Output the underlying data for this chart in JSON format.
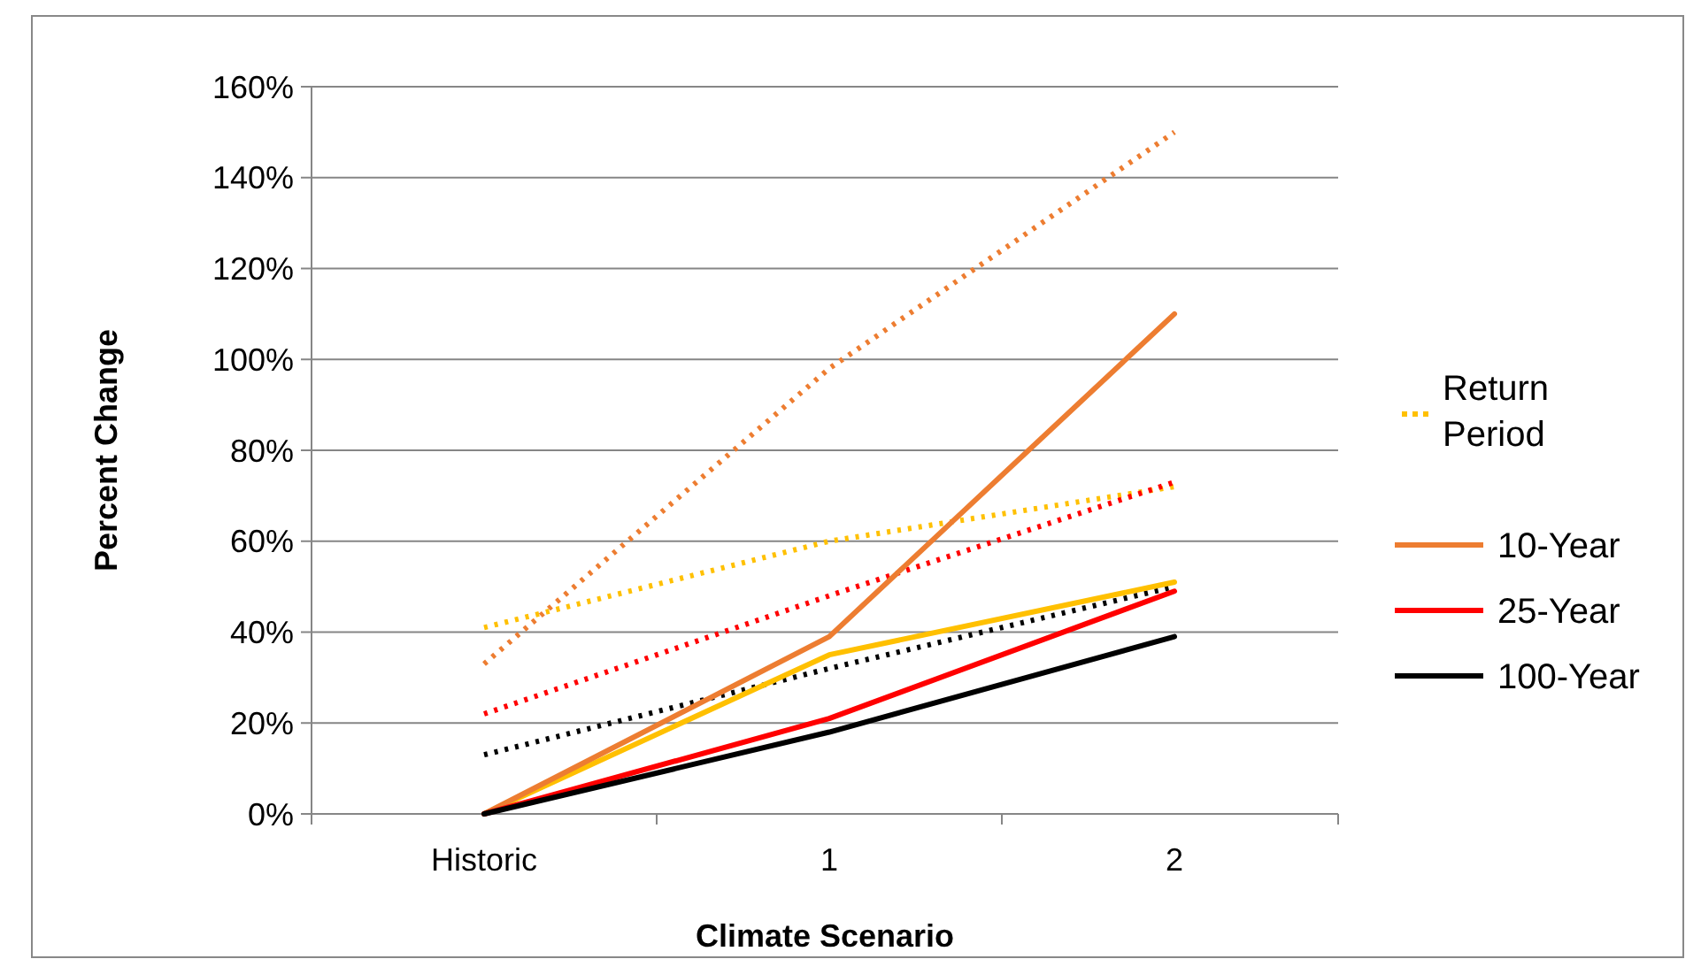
{
  "chart_data": {
    "type": "line",
    "xlabel": "Climate Scenario",
    "ylabel": "Percent Change",
    "categories": [
      "Historic",
      "1",
      "2"
    ],
    "ylim": [
      0,
      160
    ],
    "yticks": [
      {
        "value": 0,
        "label": "0%"
      },
      {
        "value": 20,
        "label": "20%"
      },
      {
        "value": 40,
        "label": "40%"
      },
      {
        "value": 60,
        "label": "60%"
      },
      {
        "value": 80,
        "label": "80%"
      },
      {
        "value": 100,
        "label": "100%"
      },
      {
        "value": 120,
        "label": "120%"
      },
      {
        "value": 140,
        "label": "140%"
      },
      {
        "value": 160,
        "label": "160%"
      }
    ],
    "grid": "y",
    "legend": "right",
    "series": [
      {
        "name": "Return Period",
        "color": "#ffc000",
        "line_style": "dotted",
        "values": [
          41,
          60,
          72
        ]
      },
      {
        "color": "#ed7d31",
        "line_style": "dotted",
        "values": [
          33,
          98,
          150
        ]
      },
      {
        "color": "#ff0000",
        "line_style": "dotted",
        "values": [
          22,
          48,
          73
        ]
      },
      {
        "color": "#000000",
        "line_style": "dotted",
        "values": [
          13,
          32,
          50
        ]
      },
      {
        "color": "#ffc000",
        "line_style": "solid",
        "values": [
          0,
          35,
          51
        ]
      },
      {
        "name": "10-Year",
        "color": "#ed7d31",
        "line_style": "solid",
        "values": [
          0,
          39,
          110
        ]
      },
      {
        "name": "25-Year",
        "color": "#ff0000",
        "line_style": "solid",
        "values": [
          0,
          21,
          49
        ]
      },
      {
        "name": "100-Year",
        "color": "#000000",
        "line_style": "solid",
        "values": [
          0,
          18,
          39
        ]
      }
    ]
  }
}
